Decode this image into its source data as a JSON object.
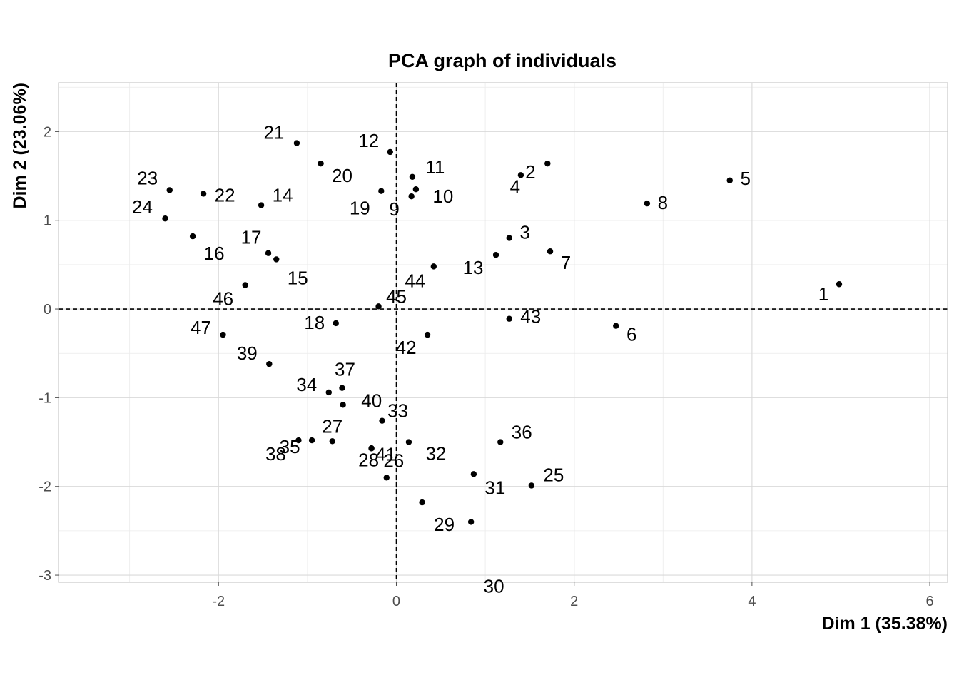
{
  "chart_data": {
    "type": "scatter",
    "title": "PCA graph of individuals",
    "xlabel": "Dim 1 (35.38%)",
    "ylabel": "Dim 2 (23.06%)",
    "xlim": [
      -3.8,
      6.2
    ],
    "ylim": [
      -3.08,
      2.55
    ],
    "xticks": [
      -2,
      0,
      2,
      4,
      6
    ],
    "yticks": [
      -3,
      -2,
      -1,
      0,
      1,
      2
    ],
    "grid": true,
    "reference_lines": {
      "x": 0,
      "y": 0
    },
    "points": [
      {
        "label": "1",
        "x": 4.98,
        "y": 0.28
      },
      {
        "label": "2",
        "x": 1.7,
        "y": 1.64
      },
      {
        "label": "3",
        "x": 1.27,
        "y": 0.8
      },
      {
        "label": "4",
        "x": 1.4,
        "y": 1.51
      },
      {
        "label": "5",
        "x": 3.75,
        "y": 1.45
      },
      {
        "label": "6",
        "x": 2.47,
        "y": -0.19
      },
      {
        "label": "7",
        "x": 1.73,
        "y": 0.65
      },
      {
        "label": "8",
        "x": 2.82,
        "y": 1.19
      },
      {
        "label": "9",
        "x": 0.17,
        "y": 1.27
      },
      {
        "label": "10",
        "x": 0.22,
        "y": 1.35
      },
      {
        "label": "11",
        "x": 0.18,
        "y": 1.49
      },
      {
        "label": "12",
        "x": -0.07,
        "y": 1.77
      },
      {
        "label": "13",
        "x": 1.12,
        "y": 0.61
      },
      {
        "label": "14",
        "x": -1.52,
        "y": 1.17
      },
      {
        "label": "15",
        "x": -1.35,
        "y": 0.56
      },
      {
        "label": "16",
        "x": -2.29,
        "y": 0.82
      },
      {
        "label": "17",
        "x": -1.44,
        "y": 0.63
      },
      {
        "label": "18",
        "x": -0.68,
        "y": -0.16
      },
      {
        "label": "19",
        "x": -0.17,
        "y": 1.33
      },
      {
        "label": "20",
        "x": -0.85,
        "y": 1.64
      },
      {
        "label": "21",
        "x": -1.12,
        "y": 1.87
      },
      {
        "label": "22",
        "x": -2.17,
        "y": 1.3
      },
      {
        "label": "23",
        "x": -2.55,
        "y": 1.34
      },
      {
        "label": "24",
        "x": -2.6,
        "y": 1.02
      },
      {
        "label": "25",
        "x": 1.52,
        "y": -1.99
      },
      {
        "label": "26",
        "x": -0.11,
        "y": -1.9
      },
      {
        "label": "27",
        "x": -0.72,
        "y": -1.49
      },
      {
        "label": "28",
        "x": -0.28,
        "y": -1.57
      },
      {
        "label": "29",
        "x": 0.29,
        "y": -2.18
      },
      {
        "label": "30",
        "x": 0.84,
        "y": -2.4
      },
      {
        "label": "31",
        "x": 0.87,
        "y": -1.86
      },
      {
        "label": "32",
        "x": 0.14,
        "y": -1.5
      },
      {
        "label": "33",
        "x": -0.16,
        "y": -1.26
      },
      {
        "label": "34",
        "x": -0.76,
        "y": -0.94
      },
      {
        "label": "35",
        "x": -0.95,
        "y": -1.48
      },
      {
        "label": "36",
        "x": 1.17,
        "y": -1.5
      },
      {
        "label": "37",
        "x": -0.61,
        "y": -0.89
      },
      {
        "label": "38",
        "x": -1.1,
        "y": -1.48
      },
      {
        "label": "39",
        "x": -1.43,
        "y": -0.62
      },
      {
        "label": "40",
        "x": -0.6,
        "y": -1.08
      },
      {
        "label": "41",
        "x": -0.28,
        "y": -1.57
      },
      {
        "label": "42",
        "x": 0.35,
        "y": -0.29
      },
      {
        "label": "43",
        "x": 1.27,
        "y": -0.11
      },
      {
        "label": "44",
        "x": 0.42,
        "y": 0.48
      },
      {
        "label": "45",
        "x": -0.2,
        "y": 0.03
      },
      {
        "label": "46",
        "x": -1.7,
        "y": 0.27
      },
      {
        "label": "47",
        "x": -1.95,
        "y": -0.29
      }
    ]
  }
}
